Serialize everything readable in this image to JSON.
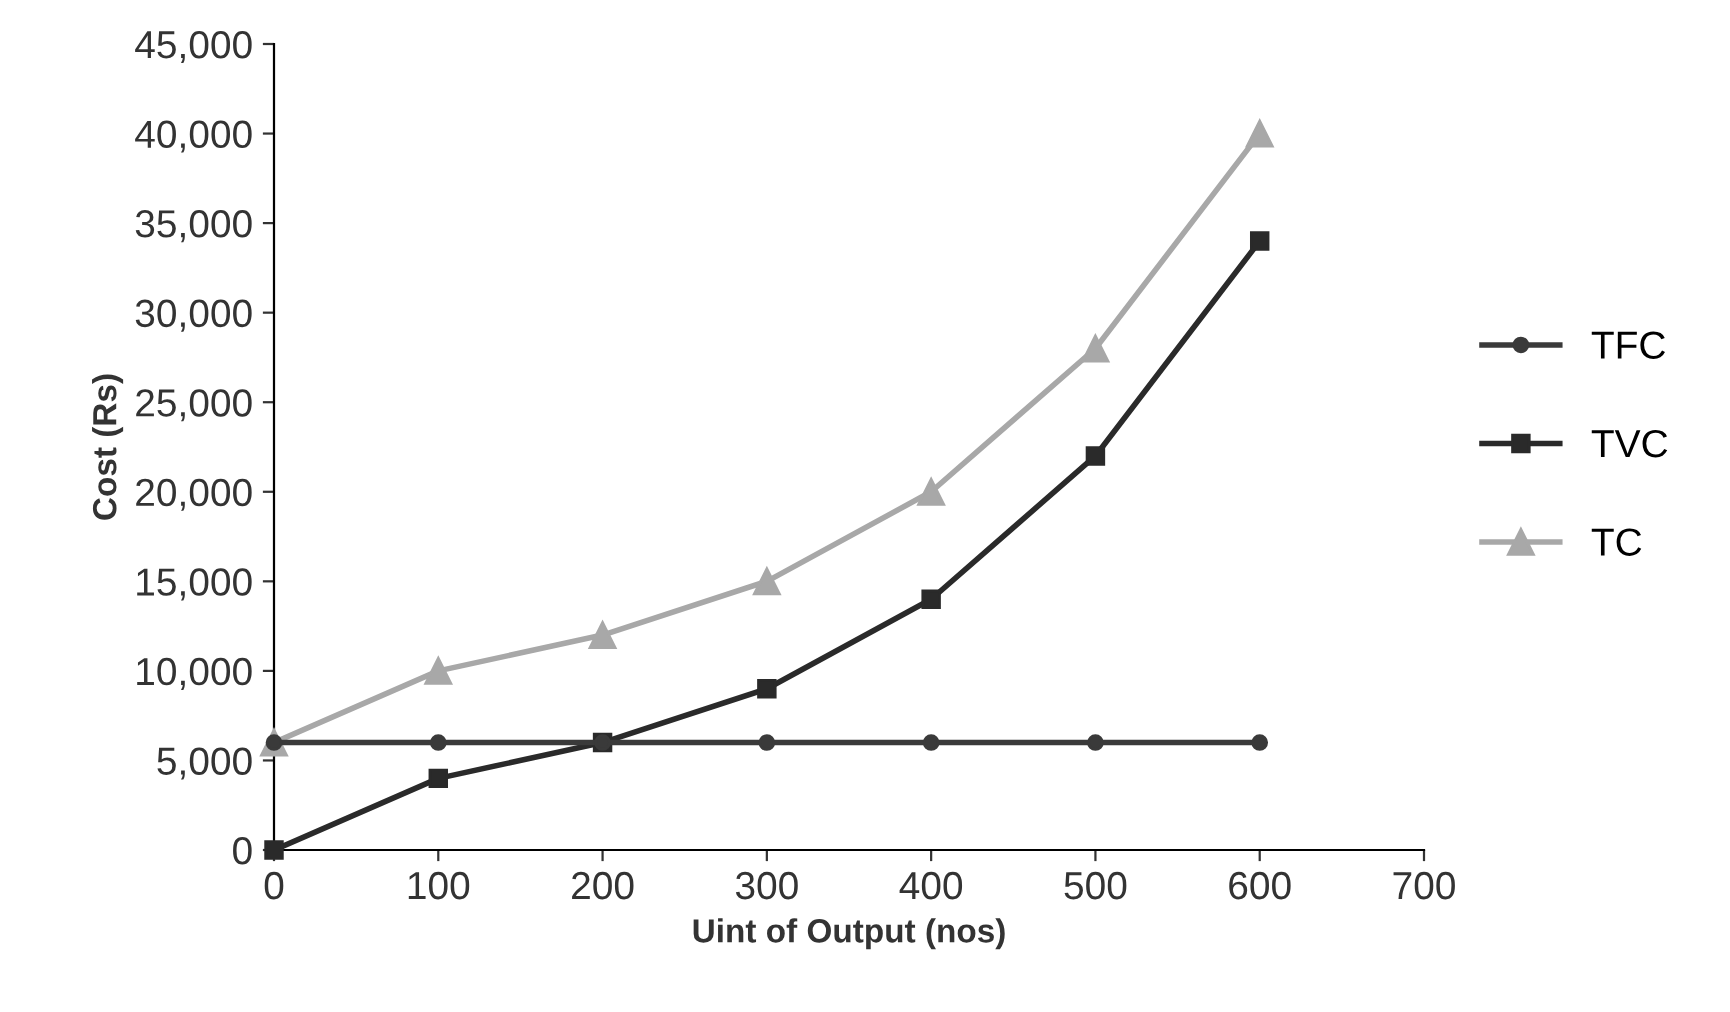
{
  "chart_data": {
    "type": "line",
    "xlabel": "Uint of Output (nos)",
    "ylabel": "Cost (Rs)",
    "x": [
      0,
      100,
      200,
      300,
      400,
      500,
      600
    ],
    "series": [
      {
        "name": "TFC",
        "color": "#3a3a3a",
        "marker": "circle",
        "values": [
          6000,
          6000,
          6000,
          6000,
          6000,
          6000,
          6000
        ]
      },
      {
        "name": "TVC",
        "color": "#2a2a2a",
        "marker": "square",
        "values": [
          0,
          4000,
          6000,
          9000,
          14000,
          22000,
          34000
        ]
      },
      {
        "name": "TC",
        "color": "#a8a8a8",
        "marker": "triangle",
        "values": [
          6000,
          10000,
          12000,
          15000,
          20000,
          28000,
          40000
        ]
      }
    ],
    "xlim": [
      0,
      700
    ],
    "xticks": [
      0,
      100,
      200,
      300,
      400,
      500,
      600,
      700
    ],
    "ylim": [
      0,
      45000
    ],
    "yticks": [
      {
        "value": 0,
        "label": "0"
      },
      {
        "value": 5000,
        "label": "5,000"
      },
      {
        "value": 10000,
        "label": "10,000"
      },
      {
        "value": 15000,
        "label": "15,000"
      },
      {
        "value": 20000,
        "label": "20,000"
      },
      {
        "value": 25000,
        "label": "25,000"
      },
      {
        "value": 30000,
        "label": "30,000"
      },
      {
        "value": 35000,
        "label": "35,000"
      },
      {
        "value": 40000,
        "label": "40,000"
      },
      {
        "value": 45000,
        "label": "45,000"
      }
    ],
    "grid": false,
    "legend": "right",
    "line_style": "solid"
  }
}
